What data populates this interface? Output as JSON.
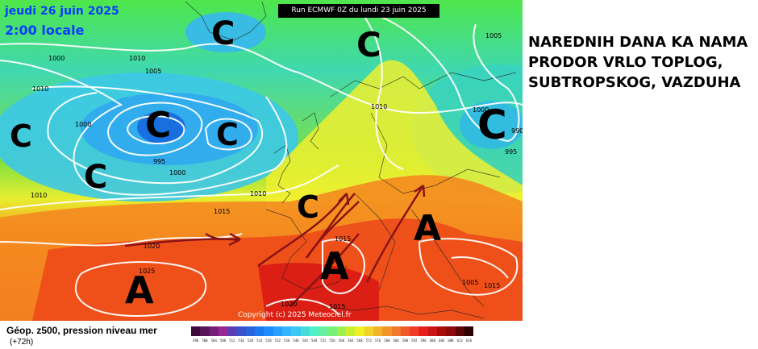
{
  "map": {
    "date_line": "jeudi 26 juin 2025",
    "time_line": "2:00 locale",
    "run_label": "Run ECMWF 0Z du lundi 23 juin 2025",
    "copyright": "Copyright (c) 2025 Meteociel.fr",
    "pressure_systems": [
      {
        "type": "low",
        "label": "C"
      },
      {
        "type": "low",
        "label": "C"
      },
      {
        "type": "low",
        "label": "C"
      },
      {
        "type": "low",
        "label": "C"
      },
      {
        "type": "low",
        "label": "C"
      },
      {
        "type": "low",
        "label": "C"
      },
      {
        "type": "low",
        "label": "C"
      },
      {
        "type": "low",
        "label": "C"
      },
      {
        "type": "high",
        "label": "A"
      },
      {
        "type": "high",
        "label": "A"
      },
      {
        "type": "high",
        "label": "A"
      }
    ],
    "isobar_labels": [
      "1010",
      "1005",
      "1000",
      "995",
      "1000",
      "1010",
      "1015",
      "1020",
      "1025",
      "1010",
      "1010",
      "1015",
      "1015",
      "1020",
      "1015",
      "1000",
      "995",
      "990",
      "1005",
      "1005",
      "1010",
      "1000"
    ],
    "colors": {
      "cold_core": "#1a6fe0",
      "cold": "#3cb4f0",
      "cool": "#2ee6d8",
      "mild": "#60e040",
      "warm": "#f0f020",
      "hot": "#f07820",
      "very_hot": "#e81818"
    }
  },
  "headline": {
    "lines": [
      "NAREDNIH DANA KA NAMA",
      "PRODOR VRLO TOPLOG,",
      "SUBTROPSKOG, VAZDUHA"
    ]
  },
  "footer": {
    "title": "Géop. z500, pression niveau mer",
    "subtitle": "(+72h)"
  },
  "legend": {
    "ticks": [
      "496",
      "500",
      "504",
      "508",
      "512",
      "516",
      "520",
      "524",
      "528",
      "532",
      "536",
      "540",
      "544",
      "548",
      "552",
      "556",
      "560",
      "564",
      "568",
      "572",
      "576",
      "580",
      "584",
      "588",
      "592",
      "596",
      "600",
      "604",
      "608",
      "612",
      "616"
    ],
    "colors": [
      "#3c0a3c",
      "#5a145a",
      "#781e78",
      "#962896",
      "#5a3cb4",
      "#3c50c8",
      "#2864dc",
      "#1a78f0",
      "#1e8cff",
      "#28a0ff",
      "#32b4ff",
      "#3cc8f0",
      "#46dcdc",
      "#50f0c8",
      "#64f0a0",
      "#78f078",
      "#a0f050",
      "#c8f032",
      "#f0f028",
      "#f0d228",
      "#f0b428",
      "#f09628",
      "#f07828",
      "#f05a28",
      "#f03c28",
      "#e61e1e",
      "#c81414",
      "#aa0a0a",
      "#8c0a0a",
      "#5a0505",
      "#2d0202"
    ]
  }
}
